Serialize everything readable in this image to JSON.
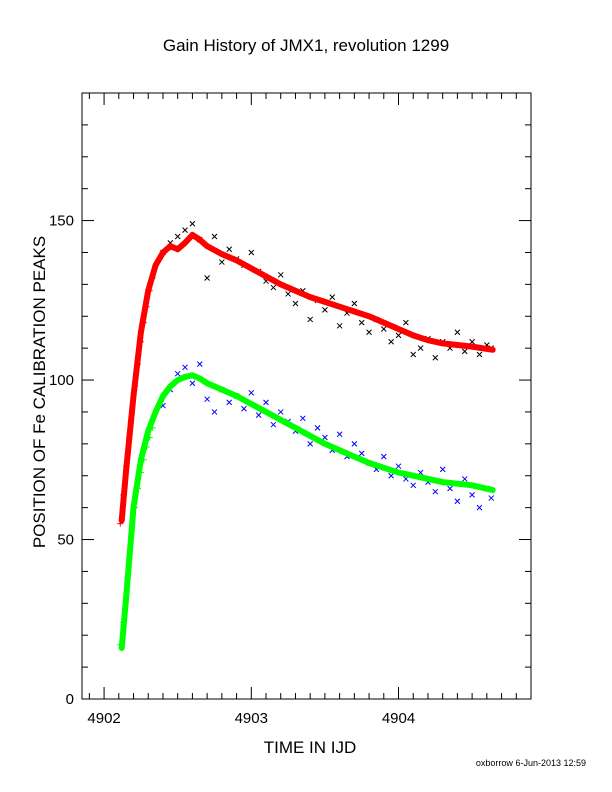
{
  "chart_data": {
    "type": "scatter",
    "title": "Gain History of JMX1, revolution 1299",
    "xlabel": "TIME IN IJD",
    "ylabel": "POSITION OF Fe CALIBRATION PEAKS",
    "xlim": [
      4901.85,
      4904.9
    ],
    "ylim": [
      0,
      190
    ],
    "xticks": [
      4902,
      4903,
      4904
    ],
    "yticks": [
      0,
      50,
      100,
      150
    ],
    "grid": false,
    "series": [
      {
        "color": "#ff0000",
        "marker": "line",
        "x": [
          4902.12,
          4902.15,
          4902.2,
          4902.25,
          4902.3,
          4902.35,
          4902.4,
          4902.45,
          4902.5,
          4902.55,
          4902.6,
          4902.65,
          4902.7,
          4902.8,
          4902.9,
          4903.0,
          4903.1,
          4903.2,
          4903.3,
          4903.4,
          4903.5,
          4903.6,
          4903.7,
          4903.8,
          4903.9,
          4904.0,
          4904.1,
          4904.2,
          4904.3,
          4904.4,
          4904.5,
          4904.64
        ],
        "y": [
          56,
          72,
          95,
          115,
          128,
          136,
          140,
          142,
          141,
          143,
          145.5,
          144,
          142,
          139.5,
          137.5,
          135,
          132.5,
          130,
          128,
          126,
          124.5,
          123,
          121.5,
          120,
          118,
          116,
          114,
          112.5,
          111.5,
          111,
          110.5,
          109.5
        ]
      },
      {
        "color": "#00ff00",
        "marker": "line",
        "x": [
          4902.12,
          4902.15,
          4902.2,
          4902.25,
          4902.3,
          4902.35,
          4902.4,
          4902.45,
          4902.5,
          4902.55,
          4902.6,
          4902.65,
          4902.7,
          4902.8,
          4902.9,
          4903.0,
          4903.1,
          4903.2,
          4903.3,
          4903.4,
          4903.5,
          4903.6,
          4903.7,
          4903.8,
          4903.9,
          4904.0,
          4904.1,
          4904.2,
          4904.3,
          4904.4,
          4904.5,
          4904.64
        ],
        "y": [
          16,
          32,
          60,
          75,
          84,
          90,
          95,
          98,
          100,
          101,
          101.5,
          100.5,
          99,
          97,
          95,
          92.5,
          90,
          87.5,
          85,
          82.5,
          80,
          78,
          76,
          74,
          72.5,
          71,
          70,
          69,
          68,
          67.5,
          67,
          65.5
        ]
      },
      {
        "color": "#000000",
        "marker": "x",
        "x": [
          4902.4,
          4902.45,
          4902.5,
          4902.55,
          4902.6,
          4902.65,
          4902.7,
          4902.75,
          4902.8,
          4902.85,
          4902.9,
          4902.95,
          4903.0,
          4903.05,
          4903.1,
          4903.15,
          4903.2,
          4903.25,
          4903.3,
          4903.35,
          4903.4,
          4903.45,
          4903.5,
          4903.55,
          4903.6,
          4903.65,
          4903.7,
          4903.75,
          4903.8,
          4903.85,
          4903.9,
          4903.95,
          4904.0,
          4904.05,
          4904.1,
          4904.15,
          4904.2,
          4904.25,
          4904.3,
          4904.35,
          4904.4,
          4904.45,
          4904.5,
          4904.55,
          4904.6,
          4904.63
        ],
        "y": [
          140,
          143,
          145,
          147,
          149,
          144,
          132,
          145,
          137,
          141,
          138,
          136,
          140,
          134,
          131,
          129,
          133,
          127,
          124,
          128,
          119,
          125,
          122,
          126,
          117,
          121,
          124,
          118,
          115,
          119,
          116,
          112,
          114,
          118,
          108,
          110,
          113,
          107,
          112,
          110,
          115,
          109,
          112,
          108,
          111,
          110
        ]
      },
      {
        "color": "#0000ff",
        "marker": "x",
        "x": [
          4902.4,
          4902.45,
          4902.5,
          4902.55,
          4902.6,
          4902.65,
          4902.7,
          4902.75,
          4902.8,
          4902.85,
          4902.9,
          4902.95,
          4903.0,
          4903.05,
          4903.1,
          4903.15,
          4903.2,
          4903.25,
          4903.3,
          4903.35,
          4903.4,
          4903.45,
          4903.5,
          4903.55,
          4903.6,
          4903.65,
          4903.7,
          4903.75,
          4903.8,
          4903.85,
          4903.9,
          4903.95,
          4904.0,
          4904.05,
          4904.1,
          4904.15,
          4904.2,
          4904.25,
          4904.3,
          4904.35,
          4904.4,
          4904.45,
          4904.5,
          4904.55,
          4904.6,
          4904.63
        ],
        "y": [
          92,
          97,
          102,
          104,
          99,
          105,
          94,
          90,
          97,
          93,
          95,
          91,
          96,
          89,
          93,
          86,
          90,
          87,
          84,
          88,
          80,
          85,
          82,
          78,
          83,
          76,
          80,
          77,
          74,
          72,
          76,
          70,
          73,
          69,
          67,
          71,
          68,
          65,
          72,
          66,
          62,
          69,
          64,
          60,
          66,
          63
        ]
      },
      {
        "color": "#ff0000",
        "marker": "plus",
        "x": [
          4902.11,
          4902.13,
          4902.15,
          4902.17,
          4902.19,
          4902.21,
          4902.23,
          4902.25,
          4902.27,
          4902.29,
          4902.31,
          4902.33
        ],
        "y": [
          55,
          64,
          73,
          82,
          90,
          98,
          105,
          112,
          118,
          123,
          128,
          132
        ]
      },
      {
        "color": "#00ff00",
        "marker": "plus",
        "x": [
          4902.11,
          4902.13,
          4902.15,
          4902.17,
          4902.19,
          4902.21,
          4902.23,
          4902.25,
          4902.27,
          4902.29,
          4902.31,
          4902.33
        ],
        "y": [
          17,
          24,
          33,
          44,
          53,
          60,
          66,
          71,
          75,
          79,
          82,
          85
        ]
      }
    ]
  },
  "footer": {
    "user": "oxborrow",
    "date": "6-Jun-2013 12:59"
  }
}
